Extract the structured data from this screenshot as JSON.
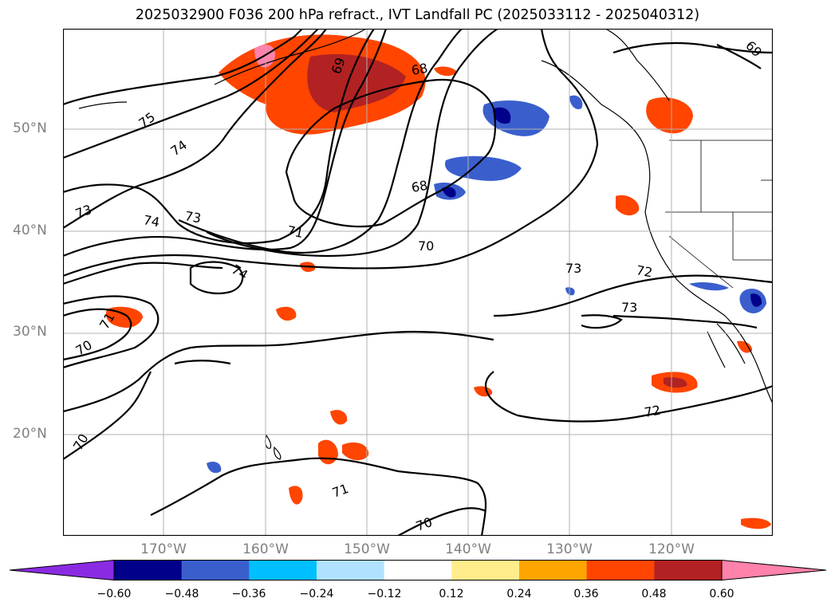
{
  "title": "2025032900 F036 200 hPa refract., IVT Landfall PC (2025033112 - 2025040312)",
  "map": {
    "lat_labels": [
      "50°N",
      "40°N",
      "30°N",
      "20°N"
    ],
    "lon_labels": [
      "170°W",
      "160°W",
      "150°W",
      "140°W",
      "130°W",
      "120°W"
    ],
    "contour_labels": [
      "75",
      "74",
      "73",
      "74",
      "73",
      "71",
      "70",
      "74",
      "73",
      "72",
      "73",
      "71",
      "70",
      "72",
      "70",
      "71",
      "70",
      "68",
      "68",
      "69",
      "69"
    ]
  },
  "colorbar": {
    "ticks": [
      "−0.60",
      "−0.48",
      "−0.36",
      "−0.24",
      "−0.12",
      "0.12",
      "0.24",
      "0.36",
      "0.48",
      "0.60"
    ],
    "colors": [
      "#8a2be2",
      "#00008b",
      "#3a5fcd",
      "#00bfff",
      "#b0e2ff",
      "#ffffff",
      "#ffec8b",
      "#ffa500",
      "#ff4500",
      "#b22222",
      "#ff82ab"
    ]
  }
}
